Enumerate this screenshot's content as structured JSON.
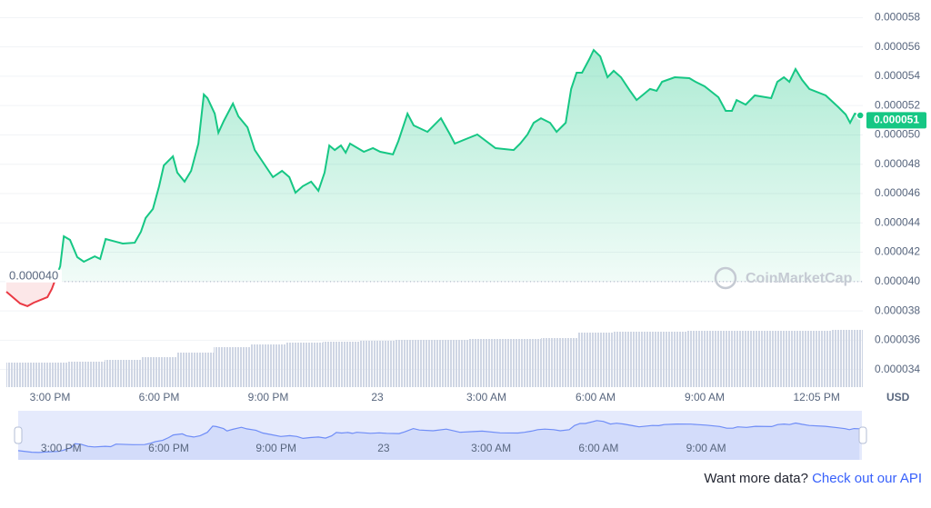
{
  "chart_data": {
    "type": "line",
    "x": [
      13.8,
      14.18,
      14.38,
      14.55,
      14.93,
      15.05,
      15.28,
      15.38,
      15.55,
      15.75,
      15.93,
      16.23,
      16.38,
      16.53,
      17.0,
      17.33,
      17.5,
      17.63,
      17.83,
      18.0,
      18.13,
      18.38,
      18.5,
      18.7,
      18.88,
      19.08,
      19.23,
      19.33,
      19.53,
      19.63,
      19.78,
      20.03,
      20.18,
      20.43,
      20.63,
      20.83,
      21.13,
      21.38,
      21.58,
      21.75,
      21.95,
      22.18,
      22.38,
      22.55,
      22.68,
      22.83,
      23.0,
      23.13,
      23.25,
      23.63,
      23.88,
      24.08,
      24.43,
      24.58,
      24.83,
      25.0,
      25.38,
      25.75,
      26.0,
      26.13,
      26.5,
      26.75,
      27.25,
      27.75,
      27.93,
      28.13,
      28.3,
      28.5,
      28.75,
      28.93,
      29.18,
      29.33,
      29.48,
      29.63,
      29.83,
      29.95,
      30.13,
      30.33,
      30.5,
      30.7,
      30.95,
      31.13,
      31.5,
      31.68,
      31.83,
      32.18,
      32.58,
      32.75,
      33.0,
      33.38,
      33.58,
      33.75,
      33.88,
      34.13,
      34.38,
      34.83,
      35.0,
      35.18,
      35.33,
      35.5,
      35.68,
      35.88,
      36.33,
      36.68,
      36.88,
      37.0,
      37.13,
      37.28
    ],
    "values": [
      3.931e-05,
      3.85e-05,
      3.832e-05,
      3.856e-05,
      3.894e-05,
      3.949e-05,
      4.104e-05,
      4.309e-05,
      4.284e-05,
      4.166e-05,
      4.135e-05,
      4.172e-05,
      4.154e-05,
      4.29e-05,
      4.259e-05,
      4.265e-05,
      4.34e-05,
      4.433e-05,
      4.495e-05,
      4.65e-05,
      4.792e-05,
      4.854e-05,
      4.743e-05,
      4.681e-05,
      4.755e-05,
      4.941e-05,
      5.276e-05,
      5.251e-05,
      5.145e-05,
      5.015e-05,
      5.096e-05,
      5.214e-05,
      5.127e-05,
      5.052e-05,
      4.897e-05,
      4.823e-05,
      4.712e-05,
      4.755e-05,
      4.712e-05,
      4.606e-05,
      4.65e-05,
      4.681e-05,
      4.619e-05,
      4.743e-05,
      4.928e-05,
      4.897e-05,
      4.928e-05,
      4.879e-05,
      4.941e-05,
      4.885e-05,
      4.91e-05,
      4.885e-05,
      4.867e-05,
      4.959e-05,
      5.145e-05,
      5.065e-05,
      5.021e-05,
      5.114e-05,
      5.003e-05,
      4.941e-05,
      4.978e-05,
      5.003e-05,
      4.91e-05,
      4.897e-05,
      4.941e-05,
      5.003e-05,
      5.083e-05,
      5.114e-05,
      5.083e-05,
      5.021e-05,
      5.083e-05,
      5.313e-05,
      5.424e-05,
      5.424e-05,
      5.517e-05,
      5.579e-05,
      5.536e-05,
      5.393e-05,
      5.437e-05,
      5.393e-05,
      5.3e-05,
      5.238e-05,
      5.313e-05,
      5.3e-05,
      5.362e-05,
      5.393e-05,
      5.387e-05,
      5.362e-05,
      5.331e-05,
      5.257e-05,
      5.164e-05,
      5.164e-05,
      5.238e-05,
      5.207e-05,
      5.269e-05,
      5.251e-05,
      5.362e-05,
      5.393e-05,
      5.362e-05,
      5.449e-05,
      5.375e-05,
      5.313e-05,
      5.269e-05,
      5.189e-05,
      5.139e-05,
      5.083e-05,
      5.145e-05,
      5.133e-05
    ],
    "up_color": "#16c784",
    "down_color": "#ea3943",
    "baseline": {
      "value": 4e-05,
      "label": "0.000040"
    },
    "current_price": 5.1e-05,
    "volume": {
      "x": [
        14,
        15,
        16,
        17,
        18,
        19,
        20,
        21,
        22,
        23,
        24,
        25,
        26,
        27,
        28,
        29,
        30,
        31,
        32,
        33,
        34,
        35,
        36,
        37
      ],
      "values": [
        27,
        27,
        28,
        30,
        33,
        38,
        44,
        47,
        49,
        50,
        51,
        52,
        52,
        53,
        53,
        54,
        60,
        61,
        61,
        62,
        62,
        62,
        62,
        63
      ]
    },
    "xlim": [
      13.8,
      37.35
    ],
    "xticks": [
      {
        "value": 15,
        "label": "3:00 PM"
      },
      {
        "value": 18,
        "label": "6:00 PM"
      },
      {
        "value": 21,
        "label": "9:00 PM"
      },
      {
        "value": 24,
        "label": "23"
      },
      {
        "value": 27,
        "label": "3:00 AM"
      },
      {
        "value": 30,
        "label": "6:00 AM"
      },
      {
        "value": 33,
        "label": "9:00 AM"
      },
      {
        "value": 36.08,
        "label": "12:05 PM"
      }
    ],
    "ylim": [
      3.28e-05,
      5.92e-05
    ],
    "yticks": [
      5.8e-05,
      5.6e-05,
      5.4e-05,
      5.2e-05,
      {
        "value": 5e-05,
        "label": "0.000050"
      },
      4.8e-05,
      4.6e-05,
      4.4e-05,
      4.2e-05,
      {
        "value": 4e-05,
        "label": "0.000040"
      },
      3.8e-05,
      3.6e-05,
      3.4e-05
    ],
    "grid": true,
    "currency": "USD",
    "watermark": "CoinMarketCap"
  },
  "footer": {
    "text": "Want more data?",
    "link": "Check out our API"
  }
}
